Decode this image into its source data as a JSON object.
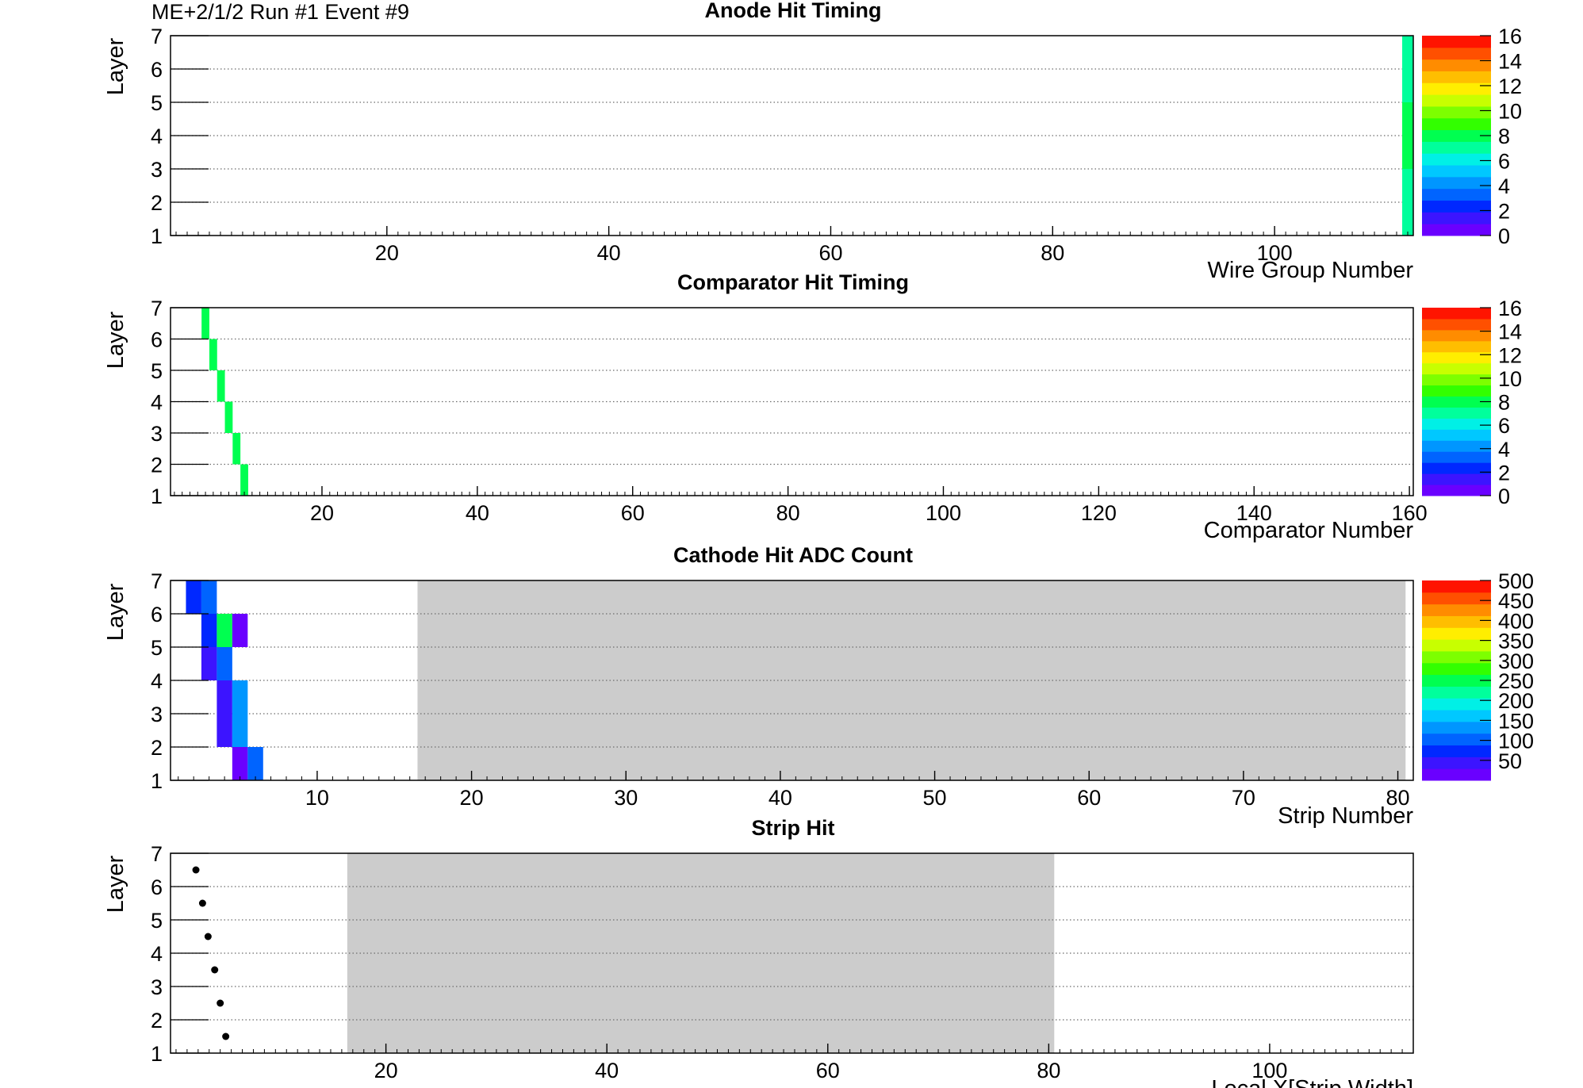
{
  "header": "ME+2/1/2   Run #1  Event #9",
  "colors": {
    "palette": [
      "#6a00ff",
      "#3c14ff",
      "#0028ff",
      "#0064ff",
      "#0096ff",
      "#00c8ff",
      "#00f0e6",
      "#00ff9c",
      "#00ff50",
      "#32ff00",
      "#7dff00",
      "#c8ff00",
      "#ffee00",
      "#ffbe00",
      "#ff8c00",
      "#ff5000",
      "#ff1400"
    ],
    "shade": "#cccccc",
    "grid": "#6b6b6b",
    "frame": "#000000"
  },
  "chart_data": [
    {
      "type": "heatmap",
      "title": "Anode Hit Timing",
      "xlabel": "Wire Group Number",
      "ylabel": "Layer",
      "xlim": [
        0.5,
        112.5
      ],
      "ylim": [
        1,
        7
      ],
      "xticks": [
        20,
        40,
        60,
        80,
        100
      ],
      "yticks": [
        1,
        2,
        3,
        4,
        5,
        6,
        7
      ],
      "zlim": [
        0,
        16
      ],
      "zticks": [
        0,
        2,
        4,
        6,
        8,
        10,
        12,
        14,
        16
      ],
      "cells": [
        {
          "x": 112,
          "layer": 1,
          "z": 7
        },
        {
          "x": 112,
          "layer": 2,
          "z": 7
        },
        {
          "x": 112,
          "layer": 3,
          "z": 8
        },
        {
          "x": 112,
          "layer": 4,
          "z": 8
        },
        {
          "x": 112,
          "layer": 5,
          "z": 7
        },
        {
          "x": 112,
          "layer": 6,
          "z": 7
        }
      ]
    },
    {
      "type": "heatmap",
      "title": "Comparator Hit Timing",
      "xlabel": "Comparator Number",
      "ylabel": "Layer",
      "xlim": [
        0.5,
        160.5
      ],
      "ylim": [
        1,
        7
      ],
      "xticks": [
        20,
        40,
        60,
        80,
        100,
        120,
        140,
        160
      ],
      "yticks": [
        1,
        2,
        3,
        4,
        5,
        6,
        7
      ],
      "zlim": [
        0,
        16
      ],
      "zticks": [
        0,
        2,
        4,
        6,
        8,
        10,
        12,
        14,
        16
      ],
      "cells": [
        {
          "x": 10,
          "layer": 1,
          "z": 8
        },
        {
          "x": 9,
          "layer": 2,
          "z": 8
        },
        {
          "x": 8,
          "layer": 3,
          "z": 8
        },
        {
          "x": 7,
          "layer": 4,
          "z": 8
        },
        {
          "x": 6,
          "layer": 5,
          "z": 8
        },
        {
          "x": 5,
          "layer": 6,
          "z": 8
        }
      ]
    },
    {
      "type": "heatmap",
      "title": "Cathode Hit ADC Count",
      "xlabel": "Strip Number",
      "ylabel": "Layer",
      "xlim": [
        0.5,
        81
      ],
      "ylim": [
        1,
        7
      ],
      "xticks": [
        10,
        20,
        30,
        40,
        50,
        60,
        70,
        80
      ],
      "yticks": [
        1,
        2,
        3,
        4,
        5,
        6,
        7
      ],
      "zlim": [
        0,
        500
      ],
      "zticks": [
        50,
        100,
        150,
        200,
        250,
        300,
        350,
        400,
        450,
        500
      ],
      "shaded_x": [
        16.5,
        80.5
      ],
      "cells": [
        {
          "x": 2,
          "layer": 6,
          "z": 80
        },
        {
          "x": 3,
          "layer": 6,
          "z": 110
        },
        {
          "x": 3,
          "layer": 5,
          "z": 70
        },
        {
          "x": 4,
          "layer": 5,
          "z": 250
        },
        {
          "x": 5,
          "layer": 5,
          "z": 20
        },
        {
          "x": 3,
          "layer": 4,
          "z": 30
        },
        {
          "x": 4,
          "layer": 4,
          "z": 90
        },
        {
          "x": 4,
          "layer": 3,
          "z": 30
        },
        {
          "x": 5,
          "layer": 3,
          "z": 120
        },
        {
          "x": 4,
          "layer": 2,
          "z": 30
        },
        {
          "x": 5,
          "layer": 2,
          "z": 120
        },
        {
          "x": 5,
          "layer": 1,
          "z": 20
        },
        {
          "x": 6,
          "layer": 1,
          "z": 90
        }
      ]
    },
    {
      "type": "scatter",
      "title": "Strip Hit",
      "xlabel": "Local X[Strip Width]",
      "ylabel": "Layer",
      "xlim": [
        0.5,
        113
      ],
      "ylim": [
        1,
        7
      ],
      "xticks": [
        20,
        40,
        60,
        80,
        100
      ],
      "yticks": [
        1,
        2,
        3,
        4,
        5,
        6,
        7
      ],
      "shaded_x": [
        16.5,
        80.5
      ],
      "points": [
        {
          "x": 2.8,
          "y": 6.5
        },
        {
          "x": 3.4,
          "y": 5.5
        },
        {
          "x": 3.9,
          "y": 4.5
        },
        {
          "x": 4.5,
          "y": 3.5
        },
        {
          "x": 5.0,
          "y": 2.5
        },
        {
          "x": 5.5,
          "y": 1.5
        }
      ]
    }
  ]
}
